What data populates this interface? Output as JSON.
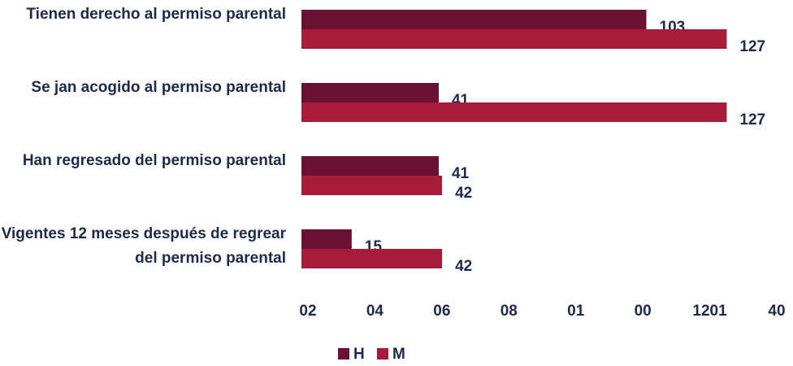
{
  "chart_data": {
    "type": "hbar",
    "categories": [
      "Tienen derecho al permiso parental",
      "Se jan acogido al permiso parental",
      "Han regresado del permiso parental",
      "Vigentes 12 meses después de regrear del permiso parental"
    ],
    "series": [
      {
        "name": "H",
        "color": "#6b1232",
        "values": [
          103,
          41,
          41,
          15
        ]
      },
      {
        "name": "M",
        "color": "#a91b3a",
        "values": [
          127,
          127,
          42,
          42
        ]
      }
    ],
    "xlim": [
      0,
      140
    ],
    "xticks": [
      {
        "value": 0,
        "label": "02"
      },
      {
        "value": 20,
        "label": "04"
      },
      {
        "value": 40,
        "label": "06"
      },
      {
        "value": 60,
        "label": "08"
      },
      {
        "value": 80,
        "label": "01"
      },
      {
        "value": 100,
        "label": "00"
      },
      {
        "value": 120,
        "label": "1201"
      },
      {
        "value": 140,
        "label": "40"
      }
    ],
    "legend": "bottom"
  }
}
